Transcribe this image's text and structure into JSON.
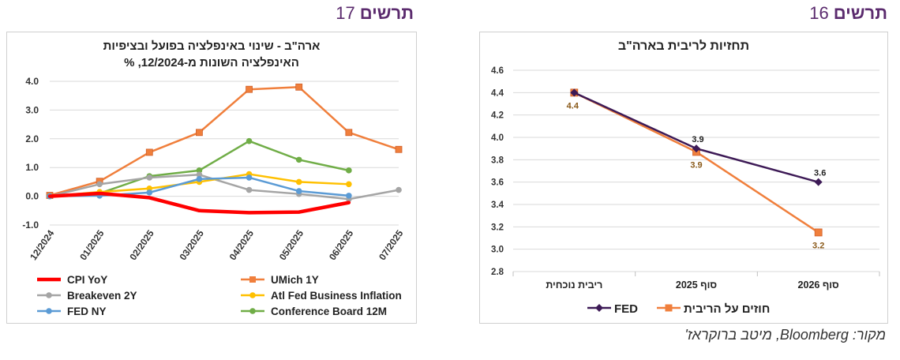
{
  "figures": {
    "left": {
      "word": "תרשים",
      "number": "17"
    },
    "right": {
      "word": "תרשים",
      "number": "16"
    }
  },
  "source": "מקור: Bloomberg, מיטב ברוקראז'",
  "chart_data": [
    {
      "type": "line",
      "title": "ארה\"ב - שינוי באינפלציה בפועל ובציפיות",
      "subtitle": "האינפלציה השונות מ-12/2024, %",
      "x": [
        "12/2024",
        "01/2025",
        "02/2025",
        "03/2025",
        "04/2025",
        "05/2025",
        "06/2025",
        "07/2025"
      ],
      "ylim": [
        -1.0,
        4.0
      ],
      "yticks": [
        "4.0",
        "3.0",
        "2.0",
        "1.0",
        "0.0",
        "-1.0"
      ],
      "grid": true,
      "legend_position": "bottom",
      "series": [
        {
          "name": "CPI YoY",
          "color": "#ff0000",
          "values": [
            0.0,
            0.1,
            -0.05,
            -0.5,
            -0.57,
            -0.55,
            -0.22,
            null
          ]
        },
        {
          "name": "UMich 1Y",
          "color": "#f07f3c",
          "values": [
            0.03,
            0.52,
            1.53,
            2.22,
            3.72,
            3.8,
            2.22,
            1.63
          ]
        },
        {
          "name": "Breakeven 2Y",
          "color": "#a5a5a5",
          "values": [
            0.0,
            0.42,
            0.65,
            0.75,
            0.22,
            0.08,
            -0.1,
            0.22
          ]
        },
        {
          "name": "Atl Fed Business Inflation",
          "color": "#ffc000",
          "values": [
            0.0,
            0.15,
            0.27,
            0.5,
            0.77,
            0.5,
            0.42,
            null
          ]
        },
        {
          "name": "FED NY",
          "color": "#5b9bd5",
          "values": [
            0.0,
            0.02,
            0.13,
            0.6,
            0.65,
            0.18,
            0.02,
            null
          ]
        },
        {
          "name": "Conference Board 12M",
          "color": "#70ad47",
          "values": [
            0.0,
            0.1,
            0.7,
            0.9,
            1.92,
            1.27,
            0.9,
            null
          ]
        }
      ]
    },
    {
      "type": "line",
      "title": "תחזיות לריבית בארה\"ב",
      "categories": [
        "ריבית נוכחית",
        "סוף 2025",
        "סוף 2026"
      ],
      "ylim": [
        2.8,
        4.6
      ],
      "yticks": [
        "4.6",
        "4.4",
        "4.2",
        "4.0",
        "3.8",
        "3.6",
        "3.4",
        "3.2",
        "3.0",
        "2.8"
      ],
      "grid": true,
      "legend_position": "bottom",
      "series": [
        {
          "name": "FED",
          "color": "#3d1a56",
          "marker": "diamond",
          "values": [
            4.4,
            3.9,
            3.6
          ],
          "labels": [
            "",
            "3.9",
            "3.6"
          ]
        },
        {
          "name": "חוזים על הריבית",
          "color": "#f07f3c",
          "marker": "square",
          "values": [
            4.4,
            3.87,
            3.15
          ],
          "labels": [
            "4.4",
            "3.9",
            "3.2"
          ]
        }
      ]
    }
  ]
}
